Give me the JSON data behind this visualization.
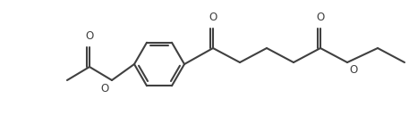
{
  "bg_color": "#ffffff",
  "line_color": "#404040",
  "line_width": 1.5,
  "figsize": [
    4.57,
    1.38
  ],
  "dpi": 100,
  "xlim": [
    0,
    457
  ],
  "ylim": [
    0,
    138
  ]
}
